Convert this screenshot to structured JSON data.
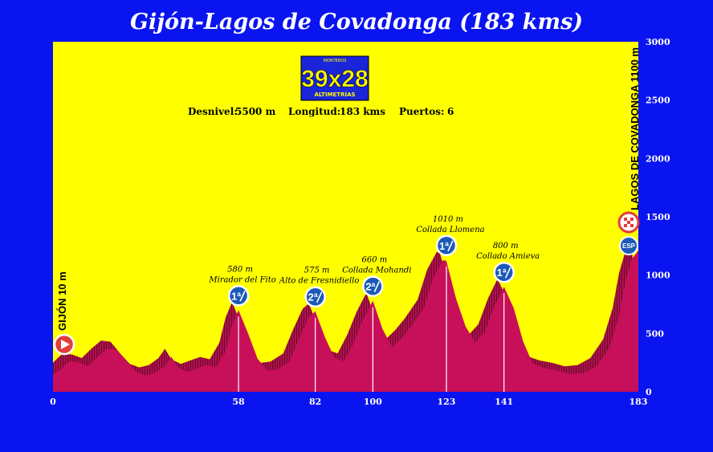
{
  "title": "Gijón-Lagos de Covadonga (183 kms)",
  "logo": {
    "top": "MONTEROS",
    "main": "39x28",
    "bottom": "ALTIMETRÍAS"
  },
  "stats": {
    "desnivel_label": "Desnivel:",
    "desnivel": "5500 m",
    "longitud_label": "Longitud:",
    "longitud": "183 kms",
    "puertos_label": "Puertos:",
    "puertos": "6"
  },
  "colors": {
    "background": "#0a14f0",
    "plot_bg": "#ffff00",
    "profile": "#c8105a",
    "profile_dark": "#6a0a2a"
  },
  "chart_data": {
    "type": "area",
    "xlim": [
      0,
      183
    ],
    "ylim": [
      0,
      3000
    ],
    "yticks": [
      0,
      500,
      1000,
      1500,
      2000,
      2500,
      3000
    ],
    "xticks": [
      0,
      58,
      82,
      100,
      123,
      141,
      183
    ],
    "start_label": "GIJÓN 10 m",
    "finish_label": "LAGOS DE COVADONGA 1100 m",
    "finish_badge": "ESP",
    "profile": [
      [
        0,
        150
      ],
      [
        2,
        180
      ],
      [
        5,
        260
      ],
      [
        8,
        250
      ],
      [
        11,
        220
      ],
      [
        14,
        300
      ],
      [
        17,
        370
      ],
      [
        20,
        360
      ],
      [
        23,
        260
      ],
      [
        26,
        170
      ],
      [
        29,
        140
      ],
      [
        32,
        160
      ],
      [
        35,
        220
      ],
      [
        37,
        300
      ],
      [
        39,
        210
      ],
      [
        42,
        170
      ],
      [
        45,
        200
      ],
      [
        48,
        230
      ],
      [
        51,
        210
      ],
      [
        54,
        350
      ],
      [
        56,
        570
      ],
      [
        58,
        700
      ],
      [
        61,
        500
      ],
      [
        64,
        280
      ],
      [
        67,
        180
      ],
      [
        70,
        190
      ],
      [
        74,
        260
      ],
      [
        77,
        460
      ],
      [
        80,
        640
      ],
      [
        82,
        690
      ],
      [
        85,
        470
      ],
      [
        88,
        290
      ],
      [
        91,
        260
      ],
      [
        94,
        420
      ],
      [
        97,
        620
      ],
      [
        100,
        780
      ],
      [
        103,
        540
      ],
      [
        106,
        380
      ],
      [
        109,
        460
      ],
      [
        112,
        560
      ],
      [
        116,
        720
      ],
      [
        119,
        980
      ],
      [
        122,
        1130
      ],
      [
        123,
        1120
      ],
      [
        126,
        800
      ],
      [
        129,
        560
      ],
      [
        132,
        420
      ],
      [
        135,
        510
      ],
      [
        138,
        730
      ],
      [
        141,
        900
      ],
      [
        144,
        720
      ],
      [
        147,
        430
      ],
      [
        150,
        240
      ],
      [
        154,
        200
      ],
      [
        158,
        180
      ],
      [
        162,
        150
      ],
      [
        166,
        160
      ],
      [
        170,
        220
      ],
      [
        174,
        380
      ],
      [
        177,
        650
      ],
      [
        179,
        950
      ],
      [
        181,
        1140
      ],
      [
        183,
        1210
      ]
    ],
    "climbs": [
      {
        "km": 58,
        "alt": 700,
        "altitude": "580 m",
        "name": "Mirador del Fito",
        "category": "1ª"
      },
      {
        "km": 82,
        "alt": 690,
        "altitude": "575 m",
        "name": "Alto de Fresnidiello",
        "category": "2ª"
      },
      {
        "km": 100,
        "alt": 780,
        "altitude": "660 m",
        "name": "Collada Mohandi",
        "category": "2ª"
      },
      {
        "km": 123,
        "alt": 1130,
        "altitude": "1010 m",
        "name": "Collada Llomena",
        "category": "1ª"
      },
      {
        "km": 141,
        "alt": 900,
        "altitude": "800 m",
        "name": "Collado Amieva",
        "category": "1ª"
      }
    ]
  }
}
